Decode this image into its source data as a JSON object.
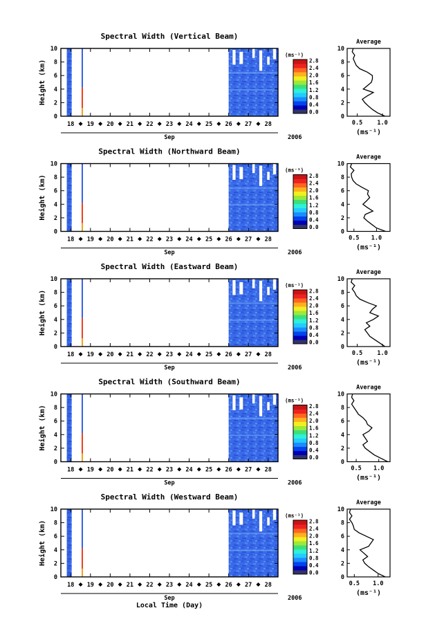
{
  "figure": {
    "x_axis_title": "Local Time (Day)",
    "month_label": "Sep",
    "year_label": "2006",
    "day_ticks": [
      "18",
      "19",
      "20",
      "21",
      "22",
      "23",
      "24",
      "25",
      "26",
      "27",
      "28"
    ],
    "height_ticks": [
      "0",
      "2",
      "4",
      "6",
      "8",
      "10"
    ],
    "height_label": "Height (km)",
    "colorbar_unit": "(ms⁻¹)",
    "colorbar_ticks": [
      "0.0",
      "0.4",
      "0.8",
      "1.2",
      "1.6",
      "2.0",
      "2.4",
      "2.8"
    ],
    "colorbar_colors": [
      "#333366",
      "#0000b4",
      "#0044ee",
      "#1b8cff",
      "#22ccff",
      "#2ff0d8",
      "#3ce07a",
      "#9ee83a",
      "#f0f020",
      "#ffb020",
      "#ff6620",
      "#ee2222",
      "#c81414"
    ],
    "avg_title": "Average",
    "avg_unit": "(ms⁻¹)"
  },
  "chart_data": [
    {
      "type": "heatmap",
      "title": "Spectral Width (Vertical Beam)",
      "xlabel": "Local Time (Day)",
      "ylabel": "Height (km)",
      "xlim": [
        17.5,
        28.5
      ],
      "ylim": [
        0,
        10
      ],
      "colorbar_range": [
        0.0,
        2.8
      ],
      "data_periods_days": [
        [
          17.8,
          18.05
        ],
        [
          18.55,
          18.6
        ],
        [
          26.0,
          28.5
        ]
      ],
      "average_profile": {
        "title": "Average",
        "xlabel": "(ms⁻¹)",
        "xticks": [
          "0.5",
          "1.0"
        ],
        "xlim": [
          0.3,
          1.15
        ],
        "height_km": [
          0,
          0.5,
          1,
          1.5,
          2,
          2.5,
          3,
          3.5,
          4,
          4.5,
          5,
          5.5,
          6,
          6.5,
          7,
          7.5,
          8,
          8.5,
          9,
          9.5,
          10
        ],
        "mean_width": [
          1.05,
          0.9,
          0.8,
          0.72,
          0.65,
          0.6,
          0.7,
          0.82,
          0.62,
          0.7,
          0.78,
          0.8,
          0.8,
          0.7,
          0.55,
          0.48,
          0.45,
          0.42,
          0.45,
          0.4,
          0.42
        ]
      }
    },
    {
      "type": "heatmap",
      "title": "Spectral Width (Northward Beam)",
      "xlabel": "Local Time (Day)",
      "ylabel": "Height (km)",
      "xlim": [
        17.5,
        28.5
      ],
      "ylim": [
        0,
        10
      ],
      "colorbar_range": [
        0.0,
        2.8
      ],
      "data_periods_days": [
        [
          17.8,
          18.05
        ],
        [
          18.55,
          18.6
        ],
        [
          26.0,
          28.5
        ]
      ],
      "average_profile": {
        "title": "Average",
        "xlabel": "(ms⁻¹)",
        "xticks": [
          "0.5",
          "1.0"
        ],
        "xlim": [
          0.35,
          1.3
        ],
        "height_km": [
          0,
          0.5,
          1,
          1.5,
          2,
          2.5,
          3,
          3.5,
          4,
          4.5,
          5,
          5.5,
          6,
          6.5,
          7,
          7.5,
          8,
          8.5,
          9,
          9.5,
          10
        ],
        "mean_width": [
          1.2,
          1.0,
          0.9,
          0.8,
          0.72,
          0.75,
          0.92,
          0.8,
          0.7,
          0.78,
          0.85,
          0.8,
          0.82,
          0.68,
          0.55,
          0.48,
          0.45,
          0.44,
          0.5,
          0.42,
          0.45
        ]
      }
    },
    {
      "type": "heatmap",
      "title": "Spectral Width (Eastward Beam)",
      "xlabel": "Local Time (Day)",
      "ylabel": "Height (km)",
      "xlim": [
        17.5,
        28.5
      ],
      "ylim": [
        0,
        10
      ],
      "colorbar_range": [
        0.0,
        2.8
      ],
      "data_periods_days": [
        [
          17.8,
          18.05
        ],
        [
          18.55,
          18.6
        ],
        [
          26.0,
          28.5
        ]
      ],
      "average_profile": {
        "title": "Average",
        "xlabel": "(ms⁻¹)",
        "xticks": [
          "0.5",
          "1.0"
        ],
        "xlim": [
          0.3,
          1.15
        ],
        "height_km": [
          0,
          0.5,
          1,
          1.5,
          2,
          2.5,
          3,
          3.5,
          4,
          4.5,
          5,
          5.5,
          6,
          6.5,
          7,
          7.5,
          8,
          8.5,
          9,
          9.5,
          10
        ],
        "mean_width": [
          1.05,
          0.95,
          0.85,
          0.75,
          0.7,
          0.65,
          0.75,
          0.68,
          0.82,
          0.92,
          0.75,
          0.8,
          0.88,
          0.7,
          0.55,
          0.48,
          0.45,
          0.4,
          0.45,
          0.38,
          0.4
        ]
      }
    },
    {
      "type": "heatmap",
      "title": "Spectral Width (Southward Beam)",
      "xlabel": "Local Time (Day)",
      "ylabel": "Height (km)",
      "xlim": [
        17.5,
        28.5
      ],
      "ylim": [
        0,
        10
      ],
      "colorbar_range": [
        0.0,
        2.8
      ],
      "data_periods_days": [
        [
          17.8,
          18.05
        ],
        [
          18.55,
          18.6
        ],
        [
          26.0,
          28.5
        ]
      ],
      "average_profile": {
        "title": "Average",
        "xlabel": "(ms⁻¹)",
        "xticks": [
          "0.5",
          "1.0"
        ],
        "xlim": [
          0.3,
          1.25
        ],
        "height_km": [
          0,
          0.5,
          1,
          1.5,
          2,
          2.5,
          3,
          3.5,
          4,
          4.5,
          5,
          5.5,
          6,
          6.5,
          7,
          7.5,
          8,
          8.5,
          9,
          9.5,
          10
        ],
        "mean_width": [
          1.2,
          1.05,
          0.9,
          0.8,
          0.7,
          0.65,
          0.75,
          0.7,
          0.65,
          0.78,
          0.85,
          0.75,
          0.72,
          0.65,
          0.55,
          0.5,
          0.45,
          0.4,
          0.45,
          0.4,
          0.42
        ]
      }
    },
    {
      "type": "heatmap",
      "title": "Spectral Width (Westward Beam)",
      "xlabel": "Local Time (Day)",
      "ylabel": "Height (km)",
      "xlim": [
        17.5,
        28.5
      ],
      "ylim": [
        0,
        10
      ],
      "colorbar_range": [
        0.0,
        2.8
      ],
      "data_periods_days": [
        [
          17.8,
          18.05
        ],
        [
          18.55,
          18.6
        ],
        [
          26.0,
          28.5
        ]
      ],
      "average_profile": {
        "title": "Average",
        "xlabel": "(ms⁻¹)",
        "xticks": [
          "0.5",
          "1.0"
        ],
        "xlim": [
          0.35,
          1.25
        ],
        "height_km": [
          0,
          0.5,
          1,
          1.5,
          2,
          2.5,
          3,
          3.5,
          4,
          4.5,
          5,
          5.5,
          6,
          6.5,
          7,
          7.5,
          8,
          8.5,
          9,
          9.5,
          10
        ],
        "mean_width": [
          1.15,
          1.0,
          0.9,
          0.8,
          0.72,
          0.68,
          0.78,
          0.7,
          0.62,
          0.8,
          0.85,
          0.9,
          0.75,
          0.6,
          0.5,
          0.48,
          0.45,
          0.4,
          0.45,
          0.4,
          0.42
        ]
      }
    }
  ]
}
